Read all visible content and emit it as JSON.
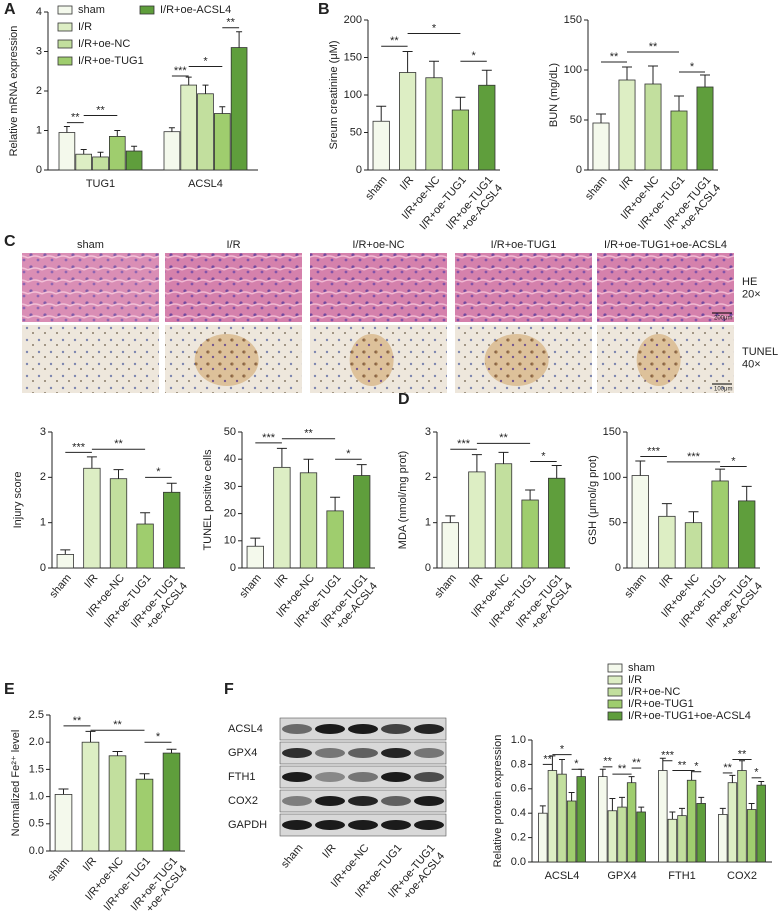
{
  "figure": {
    "panel_labels": [
      "A",
      "B",
      "C",
      "D",
      "E",
      "F"
    ],
    "histology": {
      "columns": [
        "sham",
        "I/R",
        "I/R+oe-NC",
        "I/R+oe-TUG1",
        "I/R+oe-TUG1+oe-ACSL4"
      ],
      "rows": [
        "HE\n20×",
        "TUNEL\n40×"
      ],
      "scale_bars": [
        "200μm",
        "100μm"
      ]
    },
    "western_blot": {
      "proteins": [
        "ACSL4",
        "GPX4",
        "FTH1",
        "COX2",
        "GAPDH"
      ],
      "lanes": [
        "sham",
        "I/R",
        "I/R+oe-NC",
        "I/R+oe-TUG1",
        "I/R+oe-TUG1\n+oe-ACSL4"
      ]
    }
  },
  "chart_data": [
    {
      "type": "grouped_bar",
      "ylabel": "Relative mRNA expression",
      "categories": [
        "TUG1",
        "ACSL4"
      ],
      "series": [
        {
          "name": "sham",
          "color": "#f4f9ec",
          "values": [
            0.95,
            0.97
          ],
          "errors": [
            0.15,
            0.1
          ]
        },
        {
          "name": "I/R",
          "color": "#ddeec4",
          "values": [
            0.4,
            2.15
          ],
          "errors": [
            0.12,
            0.2
          ]
        },
        {
          "name": "I/R+oe-NC",
          "color": "#c2df9e",
          "values": [
            0.33,
            1.93
          ],
          "errors": [
            0.12,
            0.22
          ]
        },
        {
          "name": "I/R+oe-TUG1",
          "color": "#9fcd6e",
          "values": [
            0.85,
            1.43
          ],
          "errors": [
            0.15,
            0.17
          ]
        },
        {
          "name": "I/R+oe-ACSL4",
          "color": "#5f9e3c",
          "values": [
            0.48,
            3.1
          ],
          "errors": [
            0.12,
            0.4
          ]
        }
      ],
      "ylim": [
        0,
        4
      ],
      "yticks": [
        0,
        1,
        2,
        3,
        4
      ],
      "annotations": [
        "**",
        "**",
        "***",
        "*",
        "**"
      ]
    },
    {
      "type": "bar",
      "ylabel": "Sreum creatinine (μM)",
      "categories": [
        "sham",
        "I/R",
        "I/R+oe-NC",
        "I/R+oe-TUG1",
        "I/R+oe-TUG1\n+oe-ACSL4"
      ],
      "values": [
        65,
        130,
        123,
        80,
        113
      ],
      "errors": [
        20,
        28,
        22,
        17,
        20
      ],
      "colors": [
        "#f4f9ec",
        "#ddeec4",
        "#c2df9e",
        "#9fcd6e",
        "#5f9e3c"
      ],
      "ylim": [
        0,
        200
      ],
      "yticks": [
        0,
        50,
        100,
        150,
        200
      ],
      "annotations": [
        "**",
        "*",
        "*"
      ]
    },
    {
      "type": "bar",
      "ylabel": "BUN (mg/dL)",
      "categories": [
        "sham",
        "I/R",
        "I/R+oe-NC",
        "I/R+oe-TUG1",
        "I/R+oe-TUG1\n+oe-ACSL4"
      ],
      "values": [
        47,
        90,
        86,
        59,
        83
      ],
      "errors": [
        9,
        13,
        18,
        15,
        12
      ],
      "colors": [
        "#f4f9ec",
        "#ddeec4",
        "#c2df9e",
        "#9fcd6e",
        "#5f9e3c"
      ],
      "ylim": [
        0,
        150
      ],
      "yticks": [
        0,
        50,
        100,
        150
      ],
      "annotations": [
        "**",
        "**",
        "*"
      ]
    },
    {
      "type": "bar",
      "ylabel": "Injury score",
      "categories": [
        "sham",
        "I/R",
        "I/R+oe-NC",
        "I/R+oe-TUG1",
        "I/R+oe-TUG1\n+oe-ACSL4"
      ],
      "values": [
        0.3,
        2.2,
        1.97,
        0.97,
        1.67
      ],
      "errors": [
        0.1,
        0.25,
        0.2,
        0.25,
        0.2
      ],
      "colors": [
        "#f4f9ec",
        "#ddeec4",
        "#c2df9e",
        "#9fcd6e",
        "#5f9e3c"
      ],
      "ylim": [
        0,
        3
      ],
      "yticks": [
        0,
        1,
        2,
        3
      ],
      "annotations": [
        "***",
        "**",
        "*"
      ]
    },
    {
      "type": "bar",
      "ylabel": "TUNEL positive cells",
      "categories": [
        "sham",
        "I/R",
        "I/R+oe-NC",
        "I/R+oe-TUG1",
        "I/R+oe-TUG1\n+oe-ACSL4"
      ],
      "values": [
        8,
        37,
        35,
        21,
        34
      ],
      "errors": [
        3,
        7,
        5,
        5,
        4
      ],
      "colors": [
        "#f4f9ec",
        "#ddeec4",
        "#c2df9e",
        "#9fcd6e",
        "#5f9e3c"
      ],
      "ylim": [
        0,
        50
      ],
      "yticks": [
        0,
        10,
        20,
        30,
        40,
        50
      ],
      "annotations": [
        "***",
        "**",
        "*"
      ]
    },
    {
      "type": "bar",
      "ylabel": "MDA (nmol/mg prot)",
      "categories": [
        "sham",
        "I/R",
        "I/R+oe-NC",
        "I/R+oe-TUG1",
        "I/R+oe-TUG1\n+oe-ACSL4"
      ],
      "values": [
        1.0,
        2.12,
        2.3,
        1.5,
        1.98
      ],
      "errors": [
        0.15,
        0.38,
        0.25,
        0.22,
        0.28
      ],
      "colors": [
        "#f4f9ec",
        "#ddeec4",
        "#c2df9e",
        "#9fcd6e",
        "#5f9e3c"
      ],
      "ylim": [
        0,
        3
      ],
      "yticks": [
        0,
        1,
        2,
        3
      ],
      "annotations": [
        "***",
        "**",
        "*"
      ]
    },
    {
      "type": "bar",
      "ylabel": "GSH (μmol/g prot)",
      "categories": [
        "sham",
        "I/R",
        "I/R+oe-NC",
        "I/R+oe-TUG1",
        "I/R+oe-TUG1\n+oe-ACSL4"
      ],
      "values": [
        102,
        57,
        50,
        96,
        74
      ],
      "errors": [
        16,
        14,
        12,
        13,
        16
      ],
      "colors": [
        "#f4f9ec",
        "#ddeec4",
        "#c2df9e",
        "#9fcd6e",
        "#5f9e3c"
      ],
      "ylim": [
        0,
        150
      ],
      "yticks": [
        0,
        50,
        100,
        150
      ],
      "annotations": [
        "***",
        "***",
        "*"
      ]
    },
    {
      "type": "bar",
      "ylabel": "Normalized Fe²⁺ level",
      "categories": [
        "sham",
        "I/R",
        "I/R+oe-NC",
        "I/R+oe-TUG1",
        "I/R+oe-TUG1\n+oe-ACSL4"
      ],
      "values": [
        1.04,
        2.0,
        1.75,
        1.32,
        1.8
      ],
      "errors": [
        0.1,
        0.2,
        0.08,
        0.1,
        0.07
      ],
      "colors": [
        "#f4f9ec",
        "#ddeec4",
        "#c2df9e",
        "#9fcd6e",
        "#5f9e3c"
      ],
      "ylim": [
        0,
        2.5
      ],
      "yticks": [
        {
          "value": 0,
          "label": "0.0"
        },
        0.5,
        {
          "value": 1,
          "label": "1.0"
        },
        1.5,
        {
          "value": 2,
          "label": "2.0"
        },
        2.5
      ],
      "annotations": [
        "**",
        "**",
        "*"
      ]
    },
    {
      "type": "grouped_bar",
      "ylabel": "Relative protein expression",
      "categories": [
        "ACSL4",
        "GPX4",
        "FTH1",
        "COX2"
      ],
      "series": [
        {
          "name": "sham",
          "color": "#f4f9ec",
          "values": [
            0.4,
            0.7,
            0.75,
            0.39
          ],
          "errors": [
            0.06,
            0.06,
            0.1,
            0.05
          ]
        },
        {
          "name": "I/R",
          "color": "#ddeec4",
          "values": [
            0.75,
            0.42,
            0.35,
            0.65
          ],
          "errors": [
            0.12,
            0.1,
            0.06,
            0.06
          ]
        },
        {
          "name": "I/R+oe-NC",
          "color": "#c2df9e",
          "values": [
            0.72,
            0.45,
            0.38,
            0.75
          ],
          "errors": [
            0.12,
            0.08,
            0.06,
            0.08
          ]
        },
        {
          "name": "I/R+oe-TUG1",
          "color": "#9fcd6e",
          "values": [
            0.5,
            0.65,
            0.67,
            0.43
          ],
          "errors": [
            0.07,
            0.05,
            0.08,
            0.05
          ]
        },
        {
          "name": "I/R+oe-TUG1+oe-ACSL4",
          "color": "#5f9e3c",
          "values": [
            0.7,
            0.41,
            0.48,
            0.63
          ],
          "errors": [
            0.06,
            0.04,
            0.05,
            0.03
          ]
        }
      ],
      "ylim": [
        0,
        1
      ],
      "yticks": [
        {
          "value": 0,
          "label": "0.0"
        },
        0.2,
        0.4,
        0.6,
        0.8,
        {
          "value": 1,
          "label": "1.0"
        }
      ],
      "annotations": [
        "**",
        "*",
        "*",
        "**",
        "**",
        "**",
        "***",
        "**",
        "*",
        "**",
        "**",
        "*"
      ]
    }
  ]
}
